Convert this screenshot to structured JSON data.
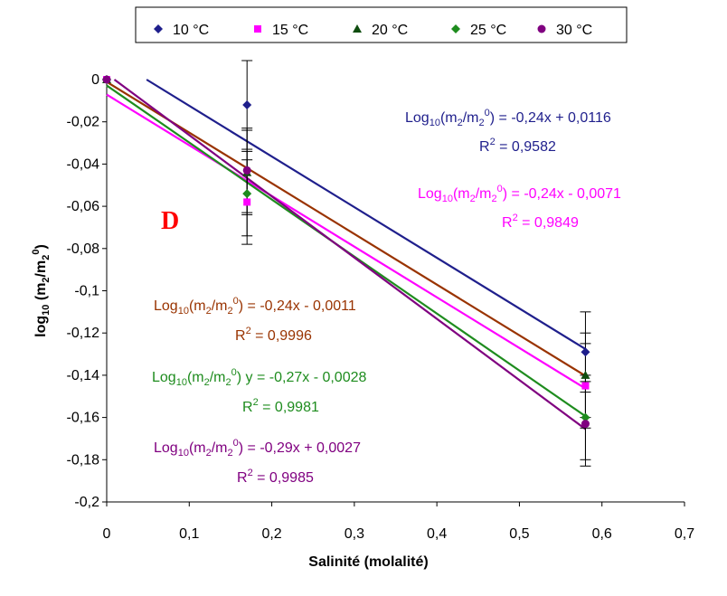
{
  "chart_data": {
    "type": "scatter",
    "panel_label": "D",
    "xlabel": "Salinité (molalité)",
    "ylabel": "log10 (m2/m20)",
    "xlim": [
      0,
      0.7
    ],
    "ylim": [
      -0.2,
      0
    ],
    "x_ticks": [
      "0",
      "0,1",
      "0,2",
      "0,3",
      "0,4",
      "0,5",
      "0,6",
      "0,7"
    ],
    "y_ticks": [
      "0",
      "-0,02",
      "-0,04",
      "-0,06",
      "-0,08",
      "-0,1",
      "-0,12",
      "-0,14",
      "-0,16",
      "-0,18",
      "-0,2"
    ],
    "grid": false,
    "legend_position": "top",
    "series": [
      {
        "name": "10 °C",
        "color": "#1f1f8c",
        "marker": "diamond",
        "x": [
          0,
          0.17,
          0.58
        ],
        "y": [
          0,
          -0.012,
          -0.129
        ],
        "err": [
          0,
          0.021,
          0.019
        ],
        "trend": {
          "slope": -0.24,
          "intercept": 0.0116
        },
        "eq_sub": "10",
        "eq_a": "(m",
        "eq_b": "/m",
        "eq_c": ") = -0,24x + 0,0116",
        "r2_value": " = 0,9582"
      },
      {
        "name": "15 °C",
        "color": "#ff00ff",
        "marker": "square",
        "x": [
          0,
          0.17,
          0.58
        ],
        "y": [
          0,
          -0.058,
          -0.145
        ],
        "err": [
          0,
          0.02,
          0.02
        ],
        "trend": {
          "slope": -0.24,
          "intercept": -0.0071
        },
        "eq_sub": "10",
        "eq_a": "(m",
        "eq_b": "/m",
        "eq_c": ")  = -0,24x - 0,0071",
        "r2_value": " = 0,9849"
      },
      {
        "name": "20 °C",
        "color": "#0f4d0f",
        "marker": "triangle",
        "x": [
          0,
          0.17,
          0.58
        ],
        "y": [
          0,
          -0.044,
          -0.14
        ],
        "err": [
          0,
          0.02,
          0.02
        ],
        "trend": {
          "slope": -0.24,
          "intercept": -0.0011
        },
        "eq_sub": "10",
        "eq_a": "(m",
        "eq_b": "/m",
        "eq_c": ") = -0,24x - 0,0011",
        "r2_value": " = 0,9996",
        "eq_color": "#993300"
      },
      {
        "name": "25 °C",
        "color": "#1e8c1e",
        "marker": "diamond",
        "x": [
          0,
          0.17,
          0.58
        ],
        "y": [
          0,
          -0.054,
          -0.16
        ],
        "err": [
          0,
          0.02,
          0.02
        ],
        "trend": {
          "slope": -0.27,
          "intercept": -0.0028
        },
        "eq_sub": "10",
        "eq_a": "(m",
        "eq_b": "/m",
        "eq_c": ") y = -0,27x - 0,0028",
        "r2_value": " = 0,9981"
      },
      {
        "name": "30 °C",
        "color": "#800080",
        "marker": "circle",
        "x": [
          0,
          0.17,
          0.58
        ],
        "y": [
          0,
          -0.043,
          -0.163
        ],
        "err": [
          0,
          0.02,
          0.02
        ],
        "trend": {
          "slope": -0.29,
          "intercept": 0.0027
        },
        "eq_sub": "10",
        "eq_a": "(m",
        "eq_b": "/m",
        "eq_c": ")  = -0,29x + 0,0027",
        "r2_value": " = 0,9985"
      }
    ]
  }
}
